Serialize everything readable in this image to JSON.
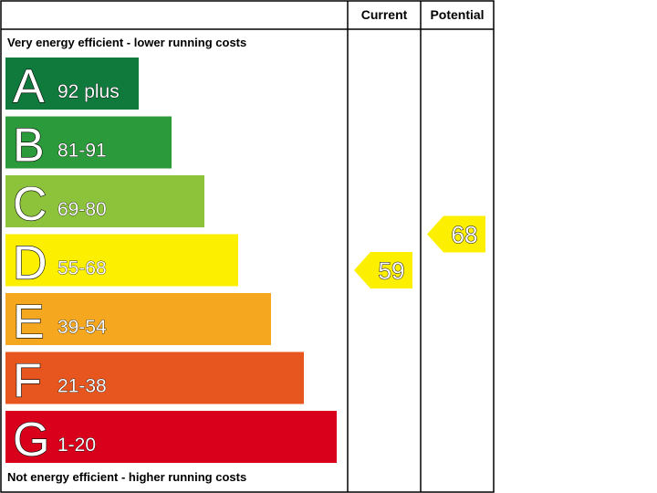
{
  "chart_data": {
    "type": "bar",
    "headers": {
      "current": "Current",
      "potential": "Potential"
    },
    "top_note": "Very energy efficient - lower running costs",
    "bottom_note": "Not energy efficient - higher running costs",
    "bands": [
      {
        "letter": "A",
        "range": "92 plus",
        "min": 92,
        "max": 100,
        "color": "#0f7a3c"
      },
      {
        "letter": "B",
        "range": "81-91",
        "min": 81,
        "max": 91,
        "color": "#2b9a3a"
      },
      {
        "letter": "C",
        "range": "69-80",
        "min": 69,
        "max": 80,
        "color": "#8dc33b"
      },
      {
        "letter": "D",
        "range": "55-68",
        "min": 55,
        "max": 68,
        "color": "#fdef00"
      },
      {
        "letter": "E",
        "range": "39-54",
        "min": 39,
        "max": 54,
        "color": "#f5a71f"
      },
      {
        "letter": "F",
        "range": "21-38",
        "min": 21,
        "max": 38,
        "color": "#e8561f"
      },
      {
        "letter": "G",
        "range": "1-20",
        "min": 1,
        "max": 20,
        "color": "#d9001b"
      }
    ],
    "current": {
      "value": "59",
      "band": "D",
      "color": "#fdef00"
    },
    "potential": {
      "value": "68",
      "band": "D",
      "color": "#fdef00"
    }
  }
}
